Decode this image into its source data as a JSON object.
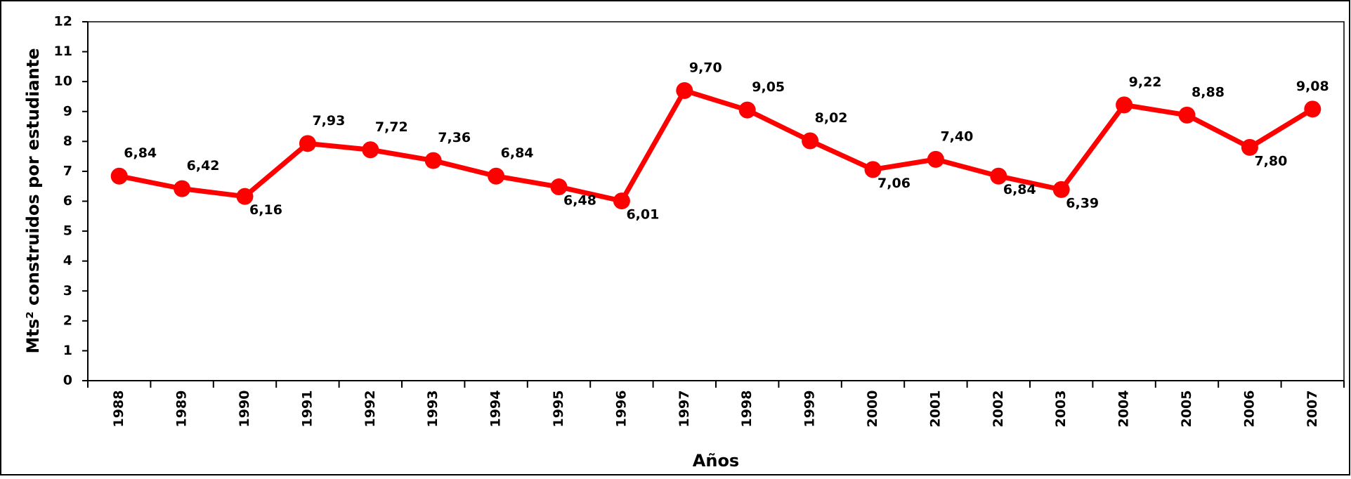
{
  "chart_data": {
    "type": "line",
    "y_label": "Mts² construidos por estudiante",
    "x_label": "Años",
    "categories": [
      "1988",
      "1989",
      "1990",
      "1991",
      "1992",
      "1993",
      "1994",
      "1995",
      "1996",
      "1997",
      "1998",
      "1999",
      "2000",
      "2001",
      "2002",
      "2003",
      "2004",
      "2005",
      "2006",
      "2007"
    ],
    "series": [
      {
        "color": "#ff0000",
        "values": [
          6.84,
          6.42,
          6.16,
          7.93,
          7.72,
          7.36,
          6.84,
          6.48,
          6.01,
          9.7,
          9.05,
          8.02,
          7.06,
          7.4,
          6.84,
          6.39,
          9.22,
          8.88,
          7.8,
          9.08
        ],
        "value_labels": [
          "6,84",
          "6,42",
          "6,16",
          "7,93",
          "7,72",
          "7,36",
          "6,84",
          "6,48",
          "6,01",
          "9,70",
          "9,05",
          "8,02",
          "7,06",
          "7,40",
          "6,84",
          "6,39",
          "9,22",
          "8,88",
          "7,80",
          "9,08"
        ]
      }
    ],
    "ylim": [
      0,
      12
    ],
    "yticks": [
      0,
      1,
      2,
      3,
      4,
      5,
      6,
      7,
      8,
      9,
      10,
      11,
      12
    ]
  }
}
